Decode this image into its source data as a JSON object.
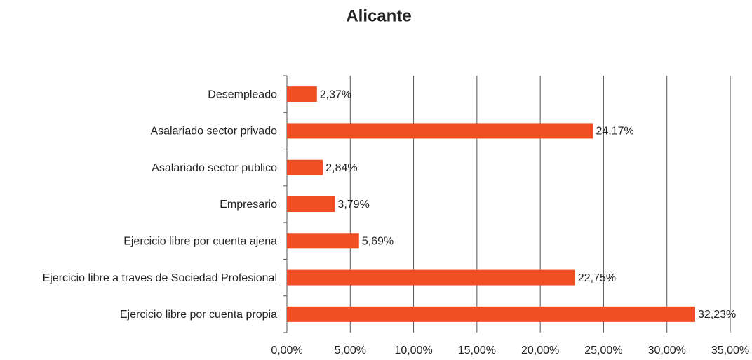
{
  "chart_data": {
    "type": "bar",
    "orientation": "horizontal",
    "title": "Alicante",
    "categories": [
      "Desempleado",
      "Asalariado sector privado",
      "Asalariado sector publico",
      "Empresario",
      "Ejercicio libre por cuenta ajena",
      "Ejercicio libre a traves de Sociedad Profesional",
      "Ejercicio libre por cuenta propia"
    ],
    "values": [
      2.37,
      24.17,
      2.84,
      3.79,
      5.69,
      22.75,
      32.23
    ],
    "value_labels": [
      "2,37%",
      "24,17%",
      "2,84%",
      "3,79%",
      "5,69%",
      "22,75%",
      "32,23%"
    ],
    "color": "#f04e23",
    "xlim": [
      0,
      35
    ],
    "xticks": [
      {
        "value": 0,
        "label": "0,00%"
      },
      {
        "value": 5,
        "label": "5,00%"
      },
      {
        "value": 10,
        "label": "10,00%"
      },
      {
        "value": 15,
        "label": "15,00%"
      },
      {
        "value": 20,
        "label": "20,00%"
      },
      {
        "value": 25,
        "label": "25,00%"
      },
      {
        "value": 30,
        "label": "30,00%"
      },
      {
        "value": 35,
        "label": "35,00%"
      }
    ],
    "grid": true
  }
}
